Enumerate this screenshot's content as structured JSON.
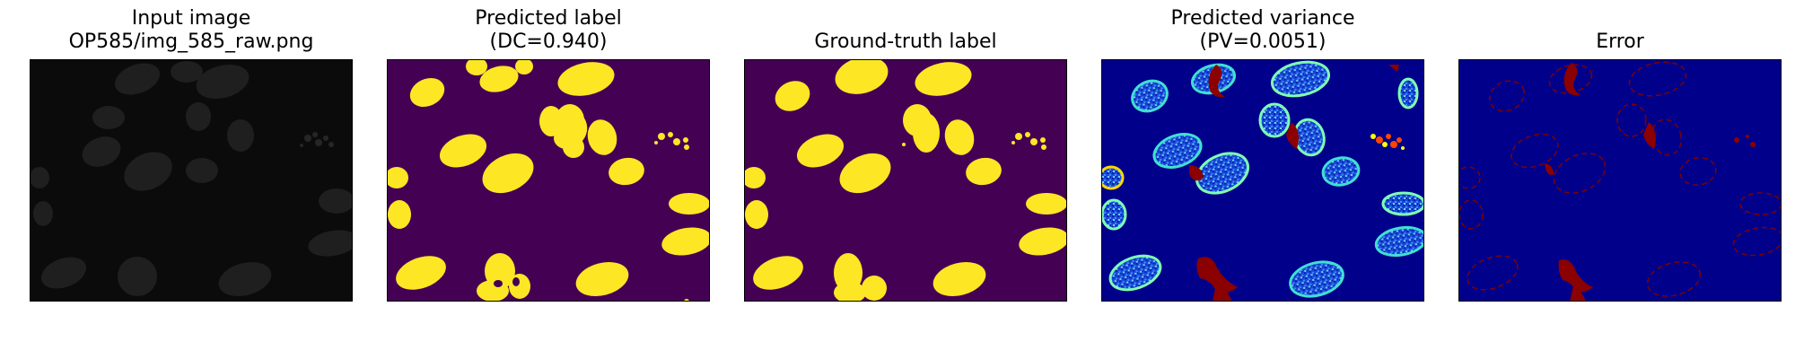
{
  "panels": [
    {
      "id": "input",
      "title_lines": [
        "Input image",
        "OP585/img_585_raw.png"
      ]
    },
    {
      "id": "pred",
      "title_lines": [
        "Predicted label",
        "(DC=0.940)"
      ]
    },
    {
      "id": "gt",
      "title_lines": [
        "Ground-truth label"
      ]
    },
    {
      "id": "var",
      "title_lines": [
        "Predicted variance",
        "(PV=0.0051)"
      ]
    },
    {
      "id": "err",
      "title_lines": [
        "Error"
      ]
    }
  ],
  "colors": {
    "label_background": "#440154",
    "label_foreground": "#fde725",
    "variance_background": "#00008b",
    "variance_hot": "#7f0000",
    "input_background": "#0a0a0a",
    "input_nucleus": "#232323"
  }
}
